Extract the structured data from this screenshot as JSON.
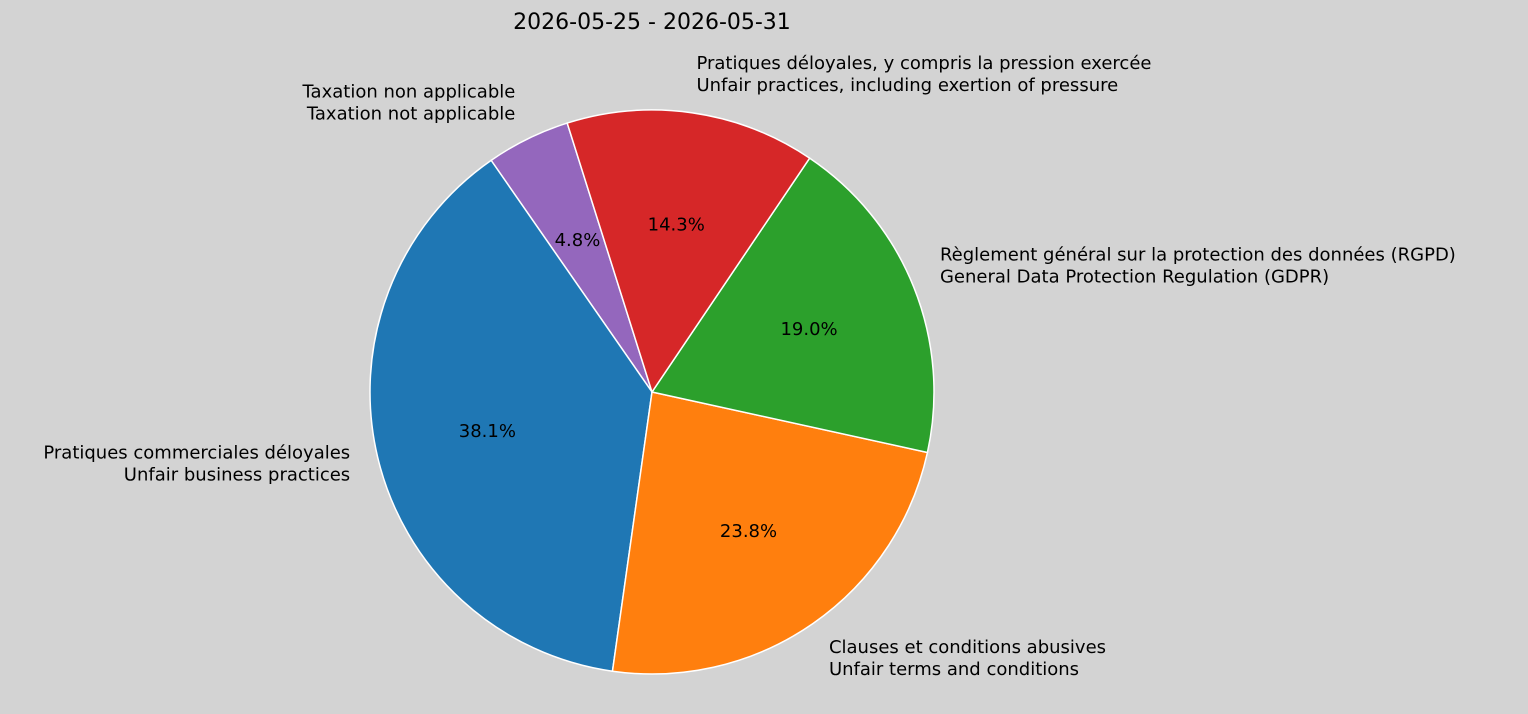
{
  "chart_data": {
    "type": "pie",
    "title": "2026-05-25 - 2026-05-31",
    "start_angle": 90,
    "direction": "counterclockwise",
    "slices": [
      {
        "label_fr": "Taxation non applicable",
        "label_en": "Taxation not applicable",
        "value": 4.8,
        "pct_label": "4.8%",
        "color": "#9467bd"
      },
      {
        "label_fr": "Pratiques commerciales déloyales",
        "label_en": "Unfair business practices",
        "value": 38.1,
        "pct_label": "38.1%",
        "color": "#1f77b4"
      },
      {
        "label_fr": "Clauses et conditions abusives",
        "label_en": "Unfair terms and conditions",
        "value": 23.8,
        "pct_label": "23.8%",
        "color": "#ff7f0e"
      },
      {
        "label_fr": "Règlement général sur la protection des données (RGPD)",
        "label_en": "General Data Protection Regulation (GDPR)",
        "value": 19.0,
        "pct_label": "19.0%",
        "color": "#2ca02c"
      },
      {
        "label_fr": "Pratiques déloyales, y compris la pression exercée",
        "label_en": "Unfair practices, including exertion of pressure",
        "value": 14.3,
        "pct_label": "14.3%",
        "color": "#d62728"
      }
    ]
  }
}
